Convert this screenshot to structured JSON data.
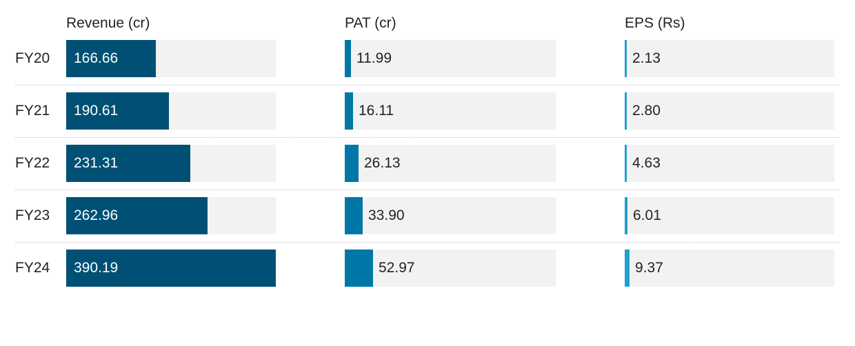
{
  "chart_data": {
    "type": "bar",
    "categories": [
      "FY20",
      "FY21",
      "FY22",
      "FY23",
      "FY24"
    ],
    "panels": [
      {
        "name": "Revenue (cr)",
        "values": [
          166.66,
          190.61,
          231.31,
          262.96,
          390.19
        ],
        "labels": [
          "166.66",
          "190.61",
          "231.31",
          "262.96",
          "390.19"
        ],
        "max": 390.19,
        "color": "#005075",
        "label_inside": true
      },
      {
        "name": "PAT (cr)",
        "values": [
          11.99,
          16.11,
          26.13,
          33.9,
          52.97
        ],
        "labels": [
          "11.99",
          "16.11",
          "26.13",
          "33.90",
          "52.97"
        ],
        "max": 398,
        "color": "#0077a6",
        "label_inside": false
      },
      {
        "name": "EPS (Rs)",
        "values": [
          2.13,
          2.8,
          4.63,
          6.01,
          9.37
        ],
        "labels": [
          "2.13",
          "2.80",
          "4.63",
          "6.01",
          "9.37"
        ],
        "max": 437,
        "color": "#1fa0cf",
        "label_inside": false
      }
    ],
    "track_color": "#f2f2f2",
    "grid": false,
    "legend": "none"
  }
}
